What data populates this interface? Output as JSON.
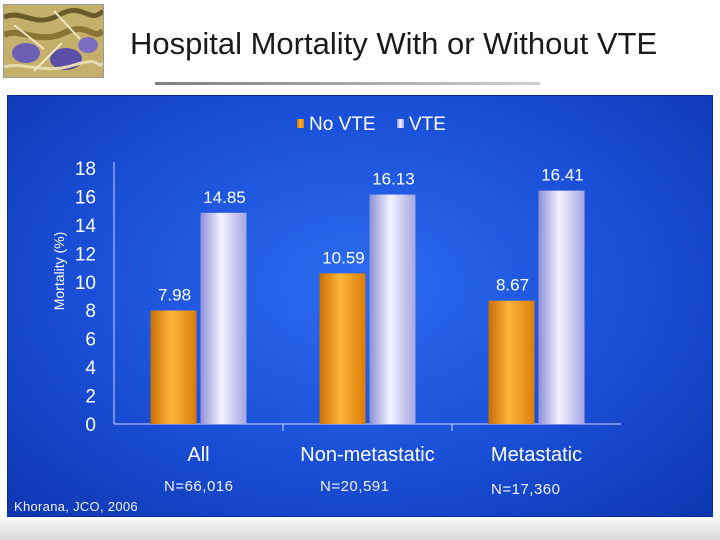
{
  "slide": {
    "title": "Hospital Mortality With or Without VTE",
    "citation": "Khorana, JCO, 2006"
  },
  "sample_sizes": [
    "N=66,016",
    "N=20,591",
    "N=17,360"
  ],
  "colors": {
    "panel_background": "#1f58e0",
    "no_vte_bar": "#f39a12",
    "vte_bar": "#c8c8f2",
    "text": "#ffffff"
  },
  "chart_data": {
    "type": "bar",
    "title": "",
    "ylabel": "Mortality (%)",
    "xlabel": "",
    "categories": [
      "All",
      "Non-metastatic",
      "Metastatic"
    ],
    "series": [
      {
        "name": "No VTE",
        "values": [
          7.98,
          10.59,
          8.67
        ],
        "color": "#f39a12"
      },
      {
        "name": "VTE",
        "values": [
          14.85,
          16.13,
          16.41
        ],
        "color": "#c8c8f2"
      }
    ],
    "value_labels": [
      [
        "7.98",
        "10.59",
        "8.67"
      ],
      [
        "14.85",
        "16.13",
        "16.41"
      ]
    ],
    "ylim": [
      0,
      18
    ],
    "yticks": [
      0,
      2,
      4,
      6,
      8,
      10,
      12,
      14,
      16,
      18
    ],
    "grid": false,
    "legend_position": "top-center"
  }
}
